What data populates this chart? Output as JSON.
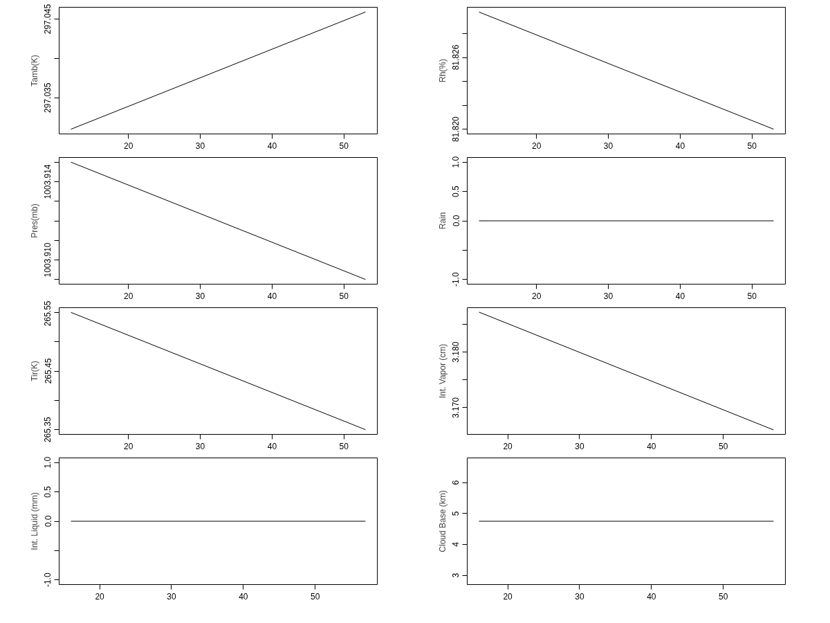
{
  "chart_data": [
    {
      "type": "line",
      "ylabel": "Tamb(K)",
      "xlim": [
        10.36,
        54.64
      ],
      "xticks": [
        20,
        30,
        40,
        50
      ],
      "ylim": [
        297.0304,
        297.0465
      ],
      "yticks": [
        297.035,
        {
          "value": 297.04,
          "label": null
        },
        297.045
      ],
      "series": [
        {
          "color": "#000000",
          "x": [
            12,
            53
          ],
          "values": [
            297.031,
            297.0459
          ]
        }
      ]
    },
    {
      "type": "line",
      "ylabel": "Rh(%)",
      "xlim": [
        10.36,
        54.64
      ],
      "xticks": [
        20,
        30,
        40,
        50
      ],
      "ylim": [
        81.8196,
        81.8302
      ],
      "yticks": [
        {
          "value": 81.82,
          "label": "81.820"
        },
        {
          "value": 81.822,
          "label": null
        },
        {
          "value": 81.824,
          "label": null
        },
        81.826,
        {
          "value": 81.828,
          "label": null
        }
      ],
      "series": [
        {
          "color": "#000000",
          "x": [
            12,
            53
          ],
          "values": [
            81.8298,
            81.82
          ]
        }
      ]
    },
    {
      "type": "line",
      "ylabel": "Pres(mb)",
      "xlim": [
        10.36,
        54.64
      ],
      "xticks": [
        20,
        30,
        40,
        50
      ],
      "ylim": [
        1003.90876,
        1003.91524
      ],
      "yticks": [
        {
          "value": 1003.909,
          "label": null
        },
        {
          "value": 1003.91,
          "label": "1003.910"
        },
        {
          "value": 1003.911,
          "label": null
        },
        {
          "value": 1003.912,
          "label": null
        },
        {
          "value": 1003.913,
          "label": null
        },
        1003.914,
        {
          "value": 1003.915,
          "label": null
        }
      ],
      "series": [
        {
          "color": "#000000",
          "x": [
            12,
            53
          ],
          "values": [
            1003.915,
            1003.909
          ]
        }
      ]
    },
    {
      "type": "line",
      "ylabel": "Rain",
      "xlim": [
        10.36,
        54.64
      ],
      "xticks": [
        20,
        30,
        40,
        50
      ],
      "ylim": [
        -1.08,
        1.08
      ],
      "yticks": [
        {
          "value": -1,
          "label": "-1.0"
        },
        {
          "value": -0.5,
          "label": null
        },
        {
          "value": 0,
          "label": "0.0"
        },
        0.5,
        {
          "value": 1,
          "label": "1.0"
        }
      ],
      "series": [
        {
          "color": "#000000",
          "x": [
            12,
            53
          ],
          "values": [
            0,
            0
          ]
        }
      ]
    },
    {
      "type": "line",
      "ylabel": "Tir(K)",
      "xlim": [
        10.36,
        54.64
      ],
      "xticks": [
        20,
        30,
        40,
        50
      ],
      "ylim": [
        265.342,
        265.558
      ],
      "yticks": [
        265.35,
        {
          "value": 265.4,
          "label": null
        },
        265.45,
        {
          "value": 265.5,
          "label": null
        },
        265.55
      ],
      "series": [
        {
          "color": "#000000",
          "x": [
            12,
            53
          ],
          "values": [
            265.55,
            265.35
          ]
        }
      ]
    },
    {
      "type": "line",
      "ylabel": "Int. Vapor (cm)",
      "xlim": [
        14.36,
        58.64
      ],
      "xticks": [
        20,
        30,
        40,
        50
      ],
      "ylim": [
        3.1652,
        3.188
      ],
      "yticks": [
        {
          "value": 3.17,
          "label": "3.170"
        },
        {
          "value": 3.175,
          "label": null
        },
        {
          "value": 3.18,
          "label": "3.180"
        },
        {
          "value": 3.185,
          "label": null
        }
      ],
      "series": [
        {
          "color": "#000000",
          "x": [
            16,
            57
          ],
          "values": [
            3.1872,
            3.166
          ]
        }
      ]
    },
    {
      "type": "line",
      "ylabel": "Int. Liquid (mm)",
      "xlim": [
        14.36,
        58.64
      ],
      "xticks": [
        20,
        30,
        40,
        50
      ],
      "ylim": [
        -1.08,
        1.08
      ],
      "yticks": [
        {
          "value": -1,
          "label": "-1.0"
        },
        {
          "value": -0.5,
          "label": null
        },
        {
          "value": 0,
          "label": "0.0"
        },
        0.5,
        {
          "value": 1,
          "label": "1.0"
        }
      ],
      "series": [
        {
          "color": "#000000",
          "x": [
            16,
            57
          ],
          "values": [
            0,
            0
          ]
        }
      ]
    },
    {
      "type": "line",
      "ylabel": "Cloud Base (km)",
      "xlim": [
        14.36,
        58.64
      ],
      "xticks": [
        20,
        30,
        40,
        50
      ],
      "ylim": [
        2.698,
        6.802
      ],
      "yticks": [
        3,
        4,
        5,
        6
      ],
      "series": [
        {
          "color": "#000000",
          "x": [
            16,
            57
          ],
          "values": [
            4.75,
            4.75
          ]
        }
      ]
    }
  ]
}
